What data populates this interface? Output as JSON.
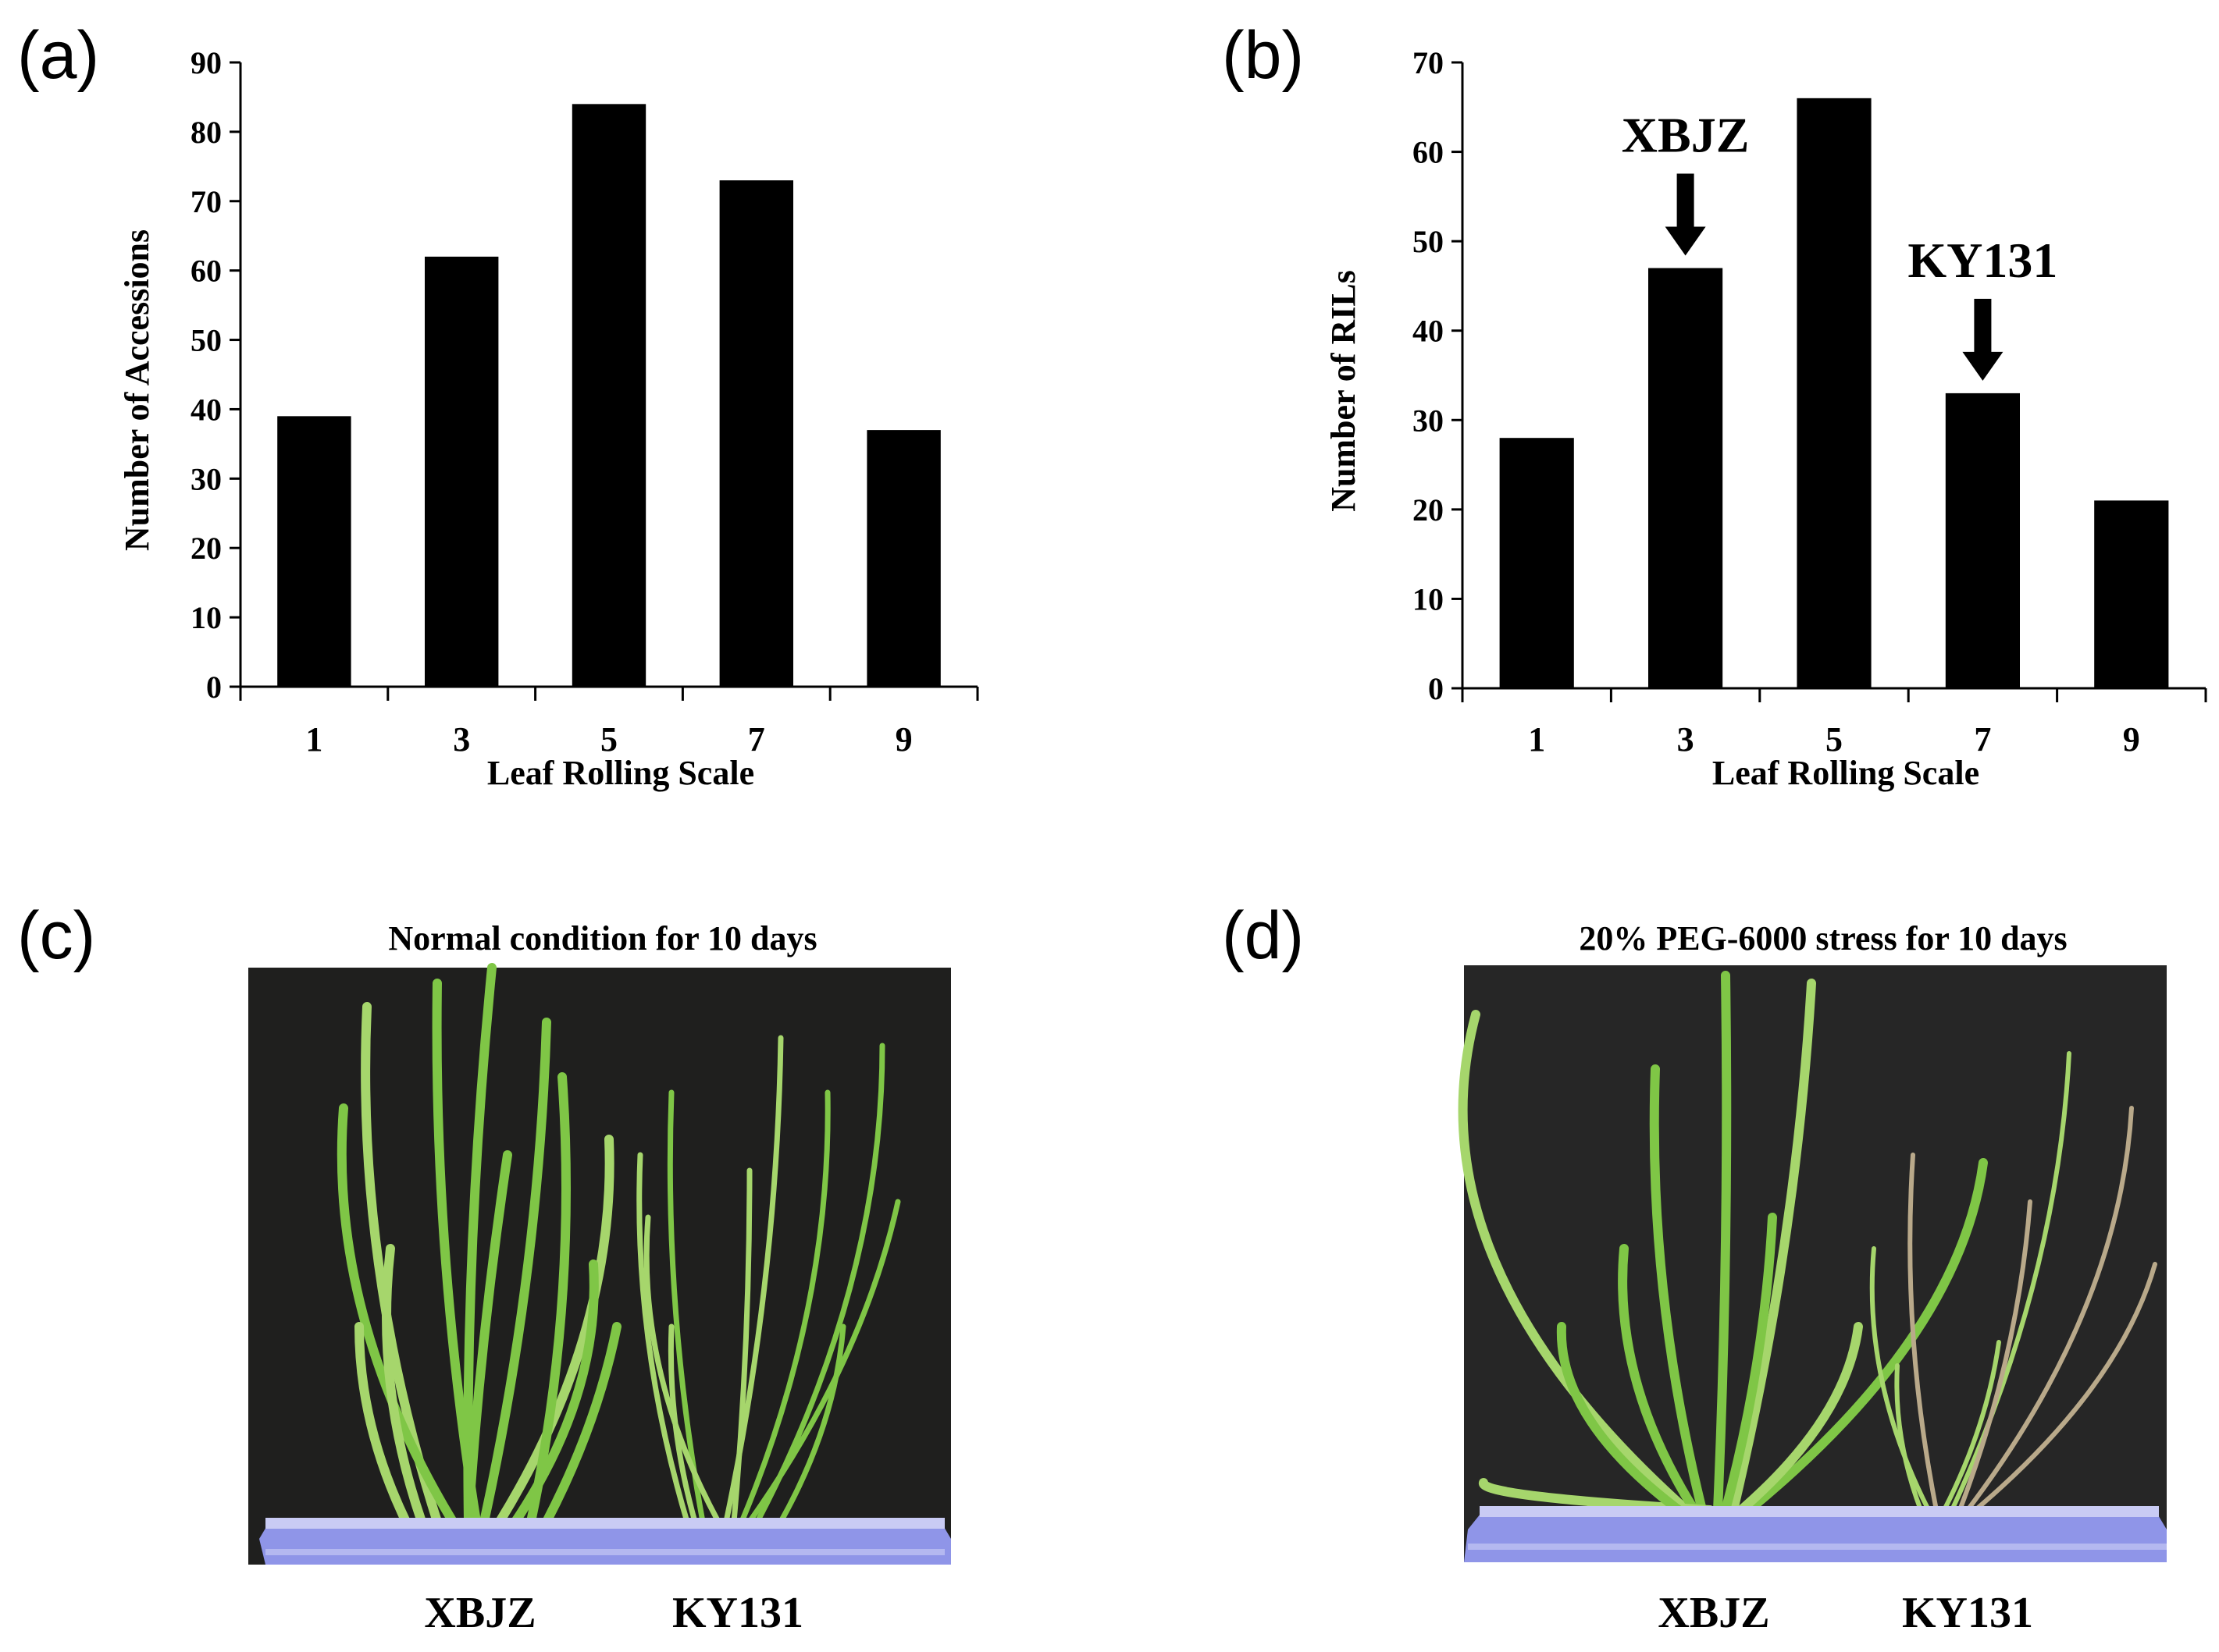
{
  "panels": {
    "a": {
      "letter": "(a)"
    },
    "b": {
      "letter": "(b)"
    },
    "c": {
      "letter": "(c)",
      "title": "Normal condition for 10 days",
      "left_label": "XBJZ",
      "right_label": "KY131"
    },
    "d": {
      "letter": "(d)",
      "title": "20% PEG-6000 stress for 10 days",
      "left_label": "XBJZ",
      "right_label": "KY131"
    }
  },
  "colors": {
    "bar": "#000000",
    "axis": "#000000",
    "backdrop_c": "#1f1f1e",
    "backdrop_d": "#262626",
    "tray": "#8f95e8",
    "tray_rim": "#c9cbf4",
    "leaf": "#7fc646",
    "leaf_light": "#a6d66c",
    "leaf_dry": "#b9a98a"
  },
  "chart_data": [
    {
      "type": "bar",
      "title": "",
      "xlabel": "Leaf Rolling Scale",
      "ylabel": "Number of Accessions",
      "categories": [
        "1",
        "3",
        "5",
        "7",
        "9"
      ],
      "values": [
        39,
        62,
        84,
        73,
        37
      ],
      "ylim": [
        0,
        90
      ],
      "yticks": [
        0,
        10,
        20,
        30,
        40,
        50,
        60,
        70,
        80,
        90
      ],
      "annotations": []
    },
    {
      "type": "bar",
      "title": "",
      "xlabel": "Leaf Rolling Scale",
      "ylabel": "Number of RILs",
      "categories": [
        "1",
        "3",
        "5",
        "7",
        "9"
      ],
      "values": [
        28,
        47,
        66,
        33,
        21
      ],
      "ylim": [
        0,
        70
      ],
      "yticks": [
        0,
        10,
        20,
        30,
        40,
        50,
        60,
        70
      ],
      "annotations": [
        {
          "text": "XBJZ",
          "category": "3"
        },
        {
          "text": "KY131",
          "category": "7"
        }
      ]
    }
  ]
}
